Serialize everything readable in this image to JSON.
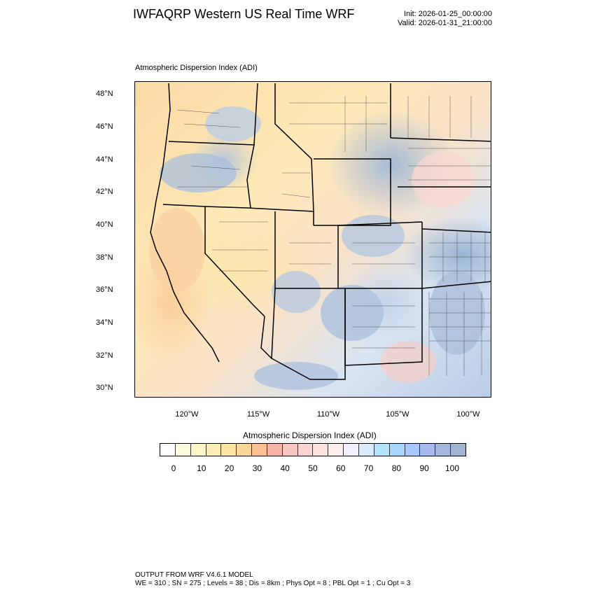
{
  "header": {
    "title": "IWFAQRP Western US Real Time WRF",
    "init": "Init: 2026-01-25_00:00:00",
    "valid": "Valid: 2026-01-31_21:00:00"
  },
  "map": {
    "panel_title": "Atmospheric Dispersion Index   (ADI)",
    "lat_labels": [
      "48°N",
      "46°N",
      "44°N",
      "42°N",
      "40°N",
      "38°N",
      "36°N",
      "34°N",
      "32°N",
      "30°N"
    ],
    "lon_labels": [
      "120°W",
      "115°W",
      "110°W",
      "105°W",
      "100°W"
    ],
    "field_colors": {
      "low": "#fde9b8",
      "mid": "#f9cfc4",
      "high": "#a9c0dd"
    }
  },
  "colorbar": {
    "title": "Atmospheric Dispersion Index  (ADI)",
    "colors": [
      "#ffffff",
      "#fffde0",
      "#fff6c8",
      "#fdeeb5",
      "#fce4a2",
      "#fbd79a",
      "#fac292",
      "#f6b3a8",
      "#f7c6c0",
      "#fad4d0",
      "#fce3e0",
      "#fdeeee",
      "#f2f2ff",
      "#d9ecff",
      "#b4e4ff",
      "#a8d6ff",
      "#a8c8ff",
      "#a6baf0",
      "#a3b8dc",
      "#a0b4cf"
    ],
    "labels": [
      "0",
      "10",
      "20",
      "30",
      "40",
      "50",
      "60",
      "70",
      "80",
      "90",
      "100"
    ]
  },
  "footer": {
    "line1": "OUTPUT FROM WRF V4.6.1 MODEL",
    "line2": "WE = 310 ; SN = 275 ; Levels = 38 ; Dis = 8km ; Phys Opt = 8 ; PBL Opt = 1 ; Cu Opt = 3"
  }
}
